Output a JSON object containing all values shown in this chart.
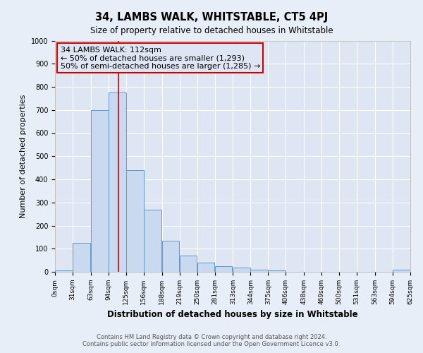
{
  "title": "34, LAMBS WALK, WHITSTABLE, CT5 4PJ",
  "subtitle": "Size of property relative to detached houses in Whitstable",
  "xlabel": "Distribution of detached houses by size in Whitstable",
  "ylabel": "Number of detached properties",
  "bar_left_edges": [
    0,
    31,
    63,
    94,
    125,
    156,
    188,
    219,
    250,
    281,
    313,
    344,
    375,
    406,
    438,
    469,
    500,
    531,
    563,
    594
  ],
  "bar_heights": [
    5,
    125,
    700,
    775,
    440,
    270,
    135,
    70,
    40,
    25,
    18,
    8,
    5,
    0,
    0,
    0,
    0,
    0,
    0,
    10
  ],
  "bin_width": 31,
  "bar_color": "#c9d9f0",
  "bar_edgecolor": "#6699cc",
  "ylim": [
    0,
    1000
  ],
  "yticks": [
    0,
    100,
    200,
    300,
    400,
    500,
    600,
    700,
    800,
    900,
    1000
  ],
  "xtick_labels": [
    "0sqm",
    "31sqm",
    "63sqm",
    "94sqm",
    "125sqm",
    "156sqm",
    "188sqm",
    "219sqm",
    "250sqm",
    "281sqm",
    "313sqm",
    "344sqm",
    "375sqm",
    "406sqm",
    "438sqm",
    "469sqm",
    "500sqm",
    "531sqm",
    "563sqm",
    "594sqm",
    "625sqm"
  ],
  "property_sqm": 112,
  "vline_color": "#cc0000",
  "annotation_line1": "34 LAMBS WALK: 112sqm",
  "annotation_line2": "← 50% of detached houses are smaller (1,293)",
  "annotation_line3": "50% of semi-detached houses are larger (1,285) →",
  "annotation_box_color": "#cc0000",
  "plot_bg_color": "#dde6f2",
  "fig_bg_color": "#e8eef7",
  "footer_line1": "Contains HM Land Registry data © Crown copyright and database right 2024.",
  "footer_line2": "Contains public sector information licensed under the Open Government Licence v3.0."
}
